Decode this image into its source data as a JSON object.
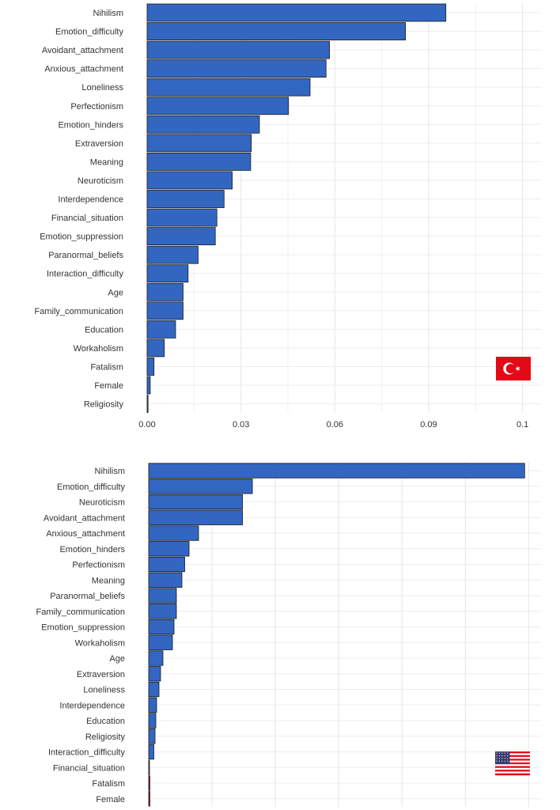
{
  "colors": {
    "bar_fill": "#3366c0",
    "bar_stroke": "#1a1a1a",
    "grid": "#e6e6e6",
    "text": "#333333",
    "flag_red": "#e30a17",
    "flag_white": "#ffffff",
    "flag_blue": "#3c3b6e",
    "tiny_bar_red": "#b22222"
  },
  "chart_data": [
    {
      "type": "bar",
      "orientation": "horizontal",
      "country": "Turkey",
      "flag_icon": "turkey-flag-icon",
      "categories": [
        "Nihilism",
        "Emotion_difficulty",
        "Avoidant_attachment",
        "Anxious_attachment",
        "Loneliness",
        "Perfectionism",
        "Emotion_hinders",
        "Extraversion",
        "Meaning",
        "Neuroticism",
        "Interdependence",
        "Financial_situation",
        "Emotion_suppression",
        "Paranormal_beliefs",
        "Interaction_difficulty",
        "Age",
        "Family_communication",
        "Education",
        "Workaholism",
        "Fatalism",
        "Female",
        "Religiosity"
      ],
      "values": [
        0.0955,
        0.0826,
        0.0583,
        0.0572,
        0.0521,
        0.0452,
        0.0359,
        0.0333,
        0.0331,
        0.0272,
        0.0246,
        0.0223,
        0.0218,
        0.0163,
        0.0131,
        0.0115,
        0.0115,
        0.0091,
        0.0055,
        0.0022,
        0.001,
        0.0003
      ],
      "xlim": [
        0,
        0.12
      ],
      "xticks": [
        0.0,
        0.03,
        0.06,
        0.09,
        0.12
      ],
      "xtick_labels": [
        "0.00",
        "0.03",
        "0.06",
        "0.09",
        "0.1"
      ],
      "minor_ticks": [
        0.015,
        0.045,
        0.075,
        0.105
      ]
    },
    {
      "type": "bar",
      "orientation": "horizontal",
      "country": "USA",
      "flag_icon": "usa-flag-icon",
      "categories": [
        "Nihilism",
        "Emotion_difficulty",
        "Neuroticism",
        "Avoidant_attachment",
        "Anxious_attachment",
        "Emotion_hinders",
        "Perfectionism",
        "Meaning",
        "Paranormal_beliefs",
        "Family_communication",
        "Emotion_suppression",
        "Workaholism",
        "Age",
        "Extraversion",
        "Loneliness",
        "Interdependence",
        "Education",
        "Religiosity",
        "Interaction_difficulty",
        "Financial_situation",
        "Fatalism",
        "Female"
      ],
      "values": [
        0.095,
        0.0262,
        0.0237,
        0.0237,
        0.0126,
        0.0102,
        0.0091,
        0.0084,
        0.007,
        0.007,
        0.0064,
        0.006,
        0.0036,
        0.003,
        0.0026,
        0.002,
        0.0018,
        0.0016,
        0.0013,
        0.0001,
        0.0003,
        0.0003
      ],
      "xlim": [
        0,
        0.1
      ],
      "gridlines": [
        0.0,
        0.016,
        0.032,
        0.048,
        0.064,
        0.08,
        0.096
      ]
    }
  ]
}
